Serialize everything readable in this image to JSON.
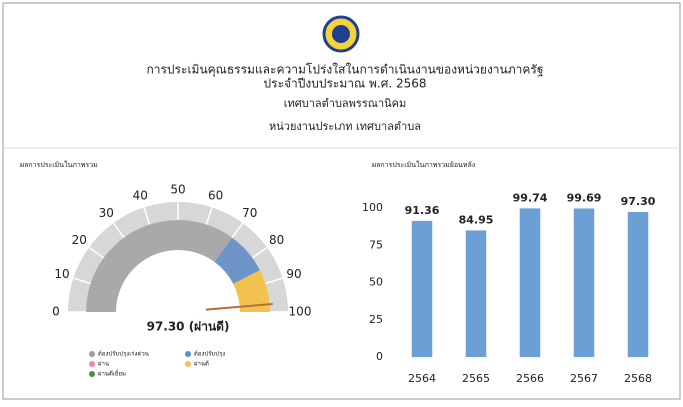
{
  "header": {
    "title": "การประเมินคุณธรรมและความโปร่งใสในการดำเนินงานของหน่วยงานภาครัฐ",
    "subtitle": "ประจำปีงบประมาณ พ.ศ. 2568",
    "organization": "เทศบาลตำบลพรรณานิคม",
    "category": "หน่วยงานประเภท เทศบาลตำบล"
  },
  "chart_data": [
    {
      "type": "gauge",
      "title": "ผลการประเมินในภาพรวม",
      "value": 97.3,
      "value_label": "97.30 (ผ่านดี)",
      "needle_color": "#b5703a",
      "range": [
        0,
        100
      ],
      "ticks": [
        0,
        10,
        20,
        30,
        40,
        50,
        60,
        70,
        80,
        90,
        100
      ],
      "bands": [
        {
          "from": 0,
          "to": 70,
          "color": "#a9a9a9"
        },
        {
          "from": 70,
          "to": 85,
          "color": "#6f95c8"
        },
        {
          "from": 85,
          "to": 100,
          "color": "#f2c14e"
        }
      ],
      "legend": [
        {
          "name": "ต้องปรับปรุงเร่งด่วน",
          "color": "#9e9e9e"
        },
        {
          "name": "ต้องปรับปรุง",
          "color": "#5b8fd0"
        },
        {
          "name": "ผ่าน",
          "color": "#f08aa0"
        },
        {
          "name": "ผ่านดี",
          "color": "#f2c14e"
        },
        {
          "name": "ผ่านดีเยี่ยม",
          "color": "#3f8f4a"
        }
      ]
    },
    {
      "type": "bar",
      "title": "ผลการประเมินในภาพรวมย้อนหลัง",
      "categories": [
        "2564",
        "2565",
        "2566",
        "2567",
        "2568"
      ],
      "values": [
        91.36,
        84.95,
        99.74,
        99.69,
        97.3
      ],
      "value_labels": [
        "91.36",
        "84.95",
        "99.74",
        "99.69",
        "97.30"
      ],
      "color": "#6b9fd6",
      "ylim": [
        0,
        100
      ],
      "yticks": [
        0,
        25,
        50,
        75,
        100
      ],
      "grid": false
    }
  ]
}
